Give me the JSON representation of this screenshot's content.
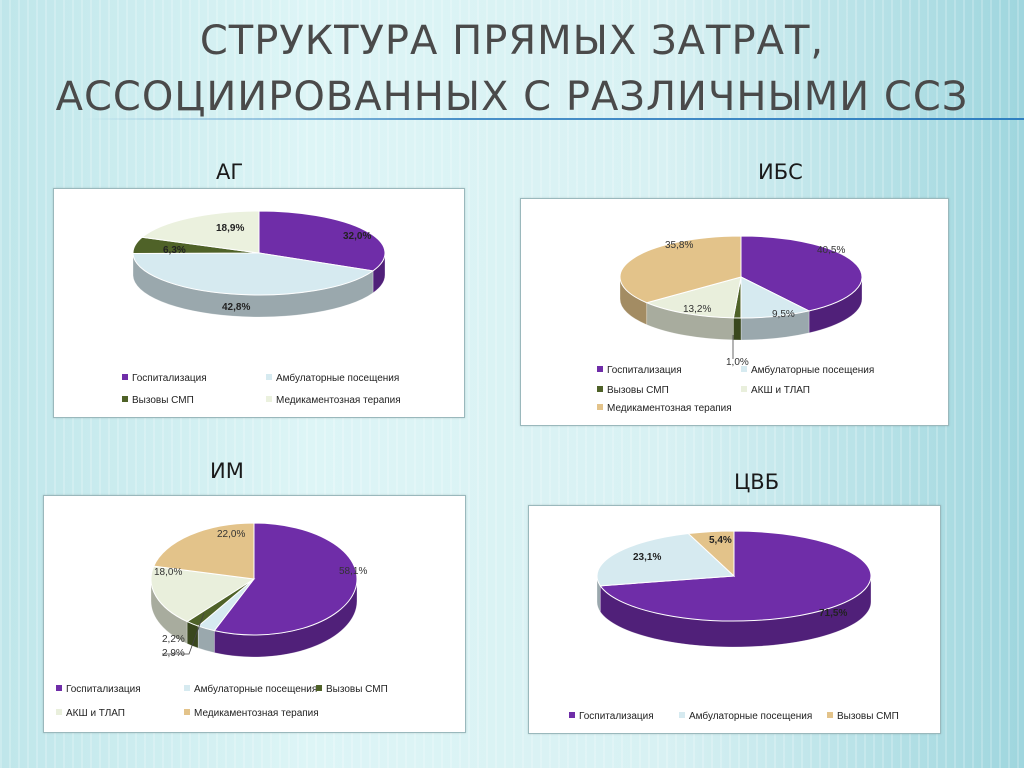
{
  "title": {
    "line1": "СТРУКТУРА ПРЯМЫХ ЗАТРАТ,",
    "line2": "АССОЦИИРОВАННЫХ С РАЗЛИЧНЫМИ ССЗ"
  },
  "colors": {
    "hospital": "#6f2da8",
    "outpatient": "#d6eaf0",
    "ems": "#4f6228",
    "drugs_ag": "#ebf1de",
    "akush": "#e9efdc",
    "drugs": "#e3c38a"
  },
  "chart_data": [
    {
      "type": "pie",
      "title": "АГ",
      "categories": [
        "Госпитализация",
        "Амбулаторные посещения",
        "Вызовы СМП",
        "Медикаментозная терапия"
      ],
      "values": [
        32.0,
        42.8,
        6.3,
        18.9
      ],
      "labels": [
        "32,0%",
        "42,8%",
        "6,3%",
        "18,9%"
      ],
      "legend": "bottom"
    },
    {
      "type": "pie",
      "title": "ИБС",
      "categories": [
        "Госпитализация",
        "Амбулаторные посещения",
        "Вызовы СМП",
        "АКШ и ТЛАП",
        "Медикаментозная терапия"
      ],
      "values": [
        40.5,
        9.5,
        1.0,
        13.2,
        35.8
      ],
      "labels": [
        "40,5%",
        "9,5%",
        "1,0%",
        "13,2%",
        "35,8%"
      ],
      "legend": "bottom"
    },
    {
      "type": "pie",
      "title": "ИМ",
      "categories": [
        "Госпитализация",
        "Амбулаторные посещения",
        "Вызовы СМП",
        "АКШ и ТЛАП",
        "Медикаментозная терапия"
      ],
      "values": [
        58.1,
        2.9,
        2.2,
        18.0,
        22.0
      ],
      "labels": [
        "58,1%",
        "2,9%",
        "2,2%",
        "18,0%",
        "22,0%"
      ],
      "legend": "bottom"
    },
    {
      "type": "pie",
      "title": "ЦВБ",
      "categories": [
        "Госпитализация",
        "Амбулаторные посещения",
        "Вызовы СМП"
      ],
      "values": [
        71.5,
        23.1,
        5.4
      ],
      "labels": [
        "71,5%",
        "23,1%",
        "5,4%"
      ],
      "legend": "bottom"
    }
  ]
}
